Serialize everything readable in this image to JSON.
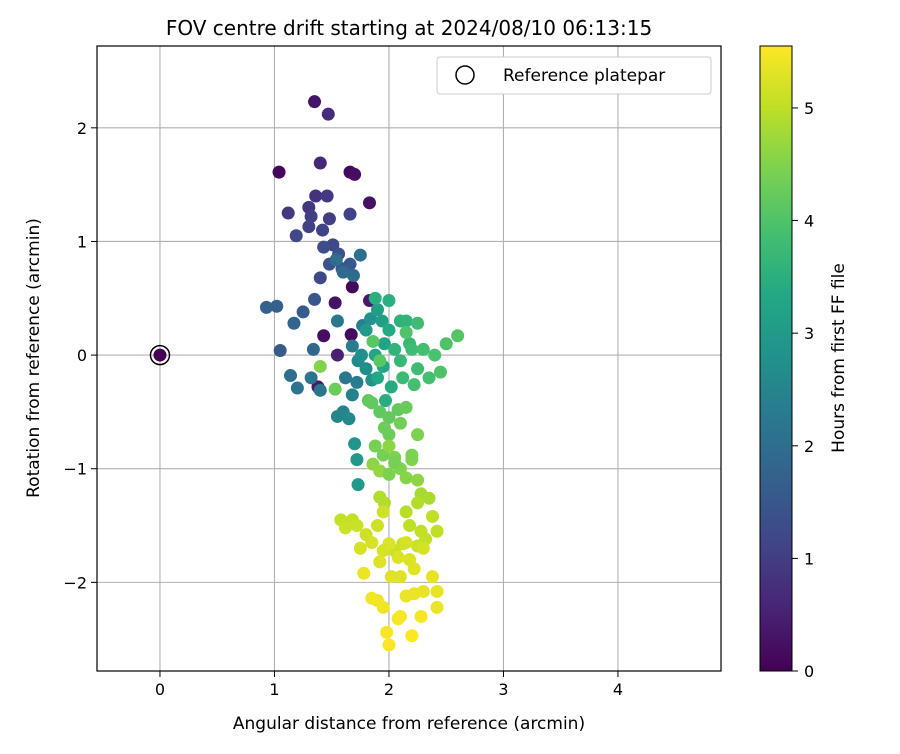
{
  "chart_data": {
    "type": "scatter",
    "title": "FOV centre drift starting at 2024/08/10 06:13:15",
    "xlabel": "Angular distance from reference (arcmin)",
    "ylabel": "Rotation from reference (arcmin)",
    "xlim": [
      -0.55,
      4.9
    ],
    "ylim": [
      -2.78,
      2.72
    ],
    "xticks": [
      0,
      1,
      2,
      3,
      4
    ],
    "yticks": [
      -2,
      -1,
      0,
      1,
      2
    ],
    "xtick_labels": [
      "0",
      "1",
      "2",
      "3",
      "4"
    ],
    "ytick_labels": [
      "−2",
      "−1",
      "0",
      "1",
      "2"
    ],
    "grid": true,
    "legend": {
      "position": "upper-right",
      "entries": [
        "Reference platepar"
      ]
    },
    "colorbar": {
      "label": "Hours from first FF file",
      "range": [
        0,
        5.55
      ],
      "ticks": [
        0,
        1,
        2,
        3,
        4,
        5
      ],
      "tick_labels": [
        "0",
        "1",
        "2",
        "3",
        "4",
        "5"
      ],
      "colormap": "viridis"
    },
    "reference_point": {
      "x": 0,
      "y": 0
    },
    "series": [
      {
        "points": [
          {
            "x": 0.0,
            "y": 0.0,
            "c": 0.0
          },
          {
            "x": 1.04,
            "y": 1.61,
            "c": 0.1
          },
          {
            "x": 1.66,
            "y": 1.61,
            "c": 0.15
          },
          {
            "x": 1.7,
            "y": 1.59,
            "c": 0.2
          },
          {
            "x": 1.35,
            "y": 2.23,
            "c": 0.3
          },
          {
            "x": 1.83,
            "y": 1.34,
            "c": 0.25
          },
          {
            "x": 1.68,
            "y": 0.6,
            "c": 0.1
          },
          {
            "x": 1.67,
            "y": 0.18,
            "c": 0.15
          },
          {
            "x": 1.43,
            "y": 0.17,
            "c": 0.2
          },
          {
            "x": 1.53,
            "y": 0.46,
            "c": 0.3
          },
          {
            "x": 1.83,
            "y": 0.48,
            "c": 0.35
          },
          {
            "x": 1.38,
            "y": -0.28,
            "c": 0.4
          },
          {
            "x": 1.55,
            "y": 0.0,
            "c": 0.5
          },
          {
            "x": 1.4,
            "y": 1.69,
            "c": 0.6
          },
          {
            "x": 1.47,
            "y": 2.12,
            "c": 0.7
          },
          {
            "x": 1.36,
            "y": 1.4,
            "c": 0.8
          },
          {
            "x": 1.3,
            "y": 1.3,
            "c": 0.85
          },
          {
            "x": 1.46,
            "y": 1.4,
            "c": 0.9
          },
          {
            "x": 1.12,
            "y": 1.25,
            "c": 0.9
          },
          {
            "x": 1.32,
            "y": 1.22,
            "c": 1.0
          },
          {
            "x": 1.48,
            "y": 1.2,
            "c": 1.0
          },
          {
            "x": 1.3,
            "y": 1.13,
            "c": 1.05
          },
          {
            "x": 1.66,
            "y": 1.24,
            "c": 1.1
          },
          {
            "x": 1.42,
            "y": 1.1,
            "c": 1.1
          },
          {
            "x": 1.19,
            "y": 1.05,
            "c": 1.2
          },
          {
            "x": 1.51,
            "y": 0.97,
            "c": 1.2
          },
          {
            "x": 1.43,
            "y": 0.95,
            "c": 1.3
          },
          {
            "x": 1.4,
            "y": 0.68,
            "c": 1.2
          },
          {
            "x": 1.56,
            "y": 0.89,
            "c": 1.35
          },
          {
            "x": 1.48,
            "y": 0.8,
            "c": 1.4
          },
          {
            "x": 1.59,
            "y": 0.76,
            "c": 1.45
          },
          {
            "x": 1.66,
            "y": 0.8,
            "c": 1.5
          },
          {
            "x": 1.35,
            "y": 0.49,
            "c": 1.5
          },
          {
            "x": 1.25,
            "y": 0.38,
            "c": 1.6
          },
          {
            "x": 1.05,
            "y": 0.04,
            "c": 1.6
          },
          {
            "x": 0.93,
            "y": 0.42,
            "c": 1.7
          },
          {
            "x": 1.02,
            "y": 0.43,
            "c": 1.7
          },
          {
            "x": 1.17,
            "y": 0.28,
            "c": 1.8
          },
          {
            "x": 1.34,
            "y": 0.05,
            "c": 1.85
          },
          {
            "x": 1.6,
            "y": 0.73,
            "c": 1.9
          },
          {
            "x": 1.69,
            "y": 0.7,
            "c": 1.9
          },
          {
            "x": 1.54,
            "y": 0.84,
            "c": 2.0
          },
          {
            "x": 1.75,
            "y": 0.88,
            "c": 2.0
          },
          {
            "x": 1.14,
            "y": -0.18,
            "c": 2.0
          },
          {
            "x": 1.2,
            "y": -0.29,
            "c": 2.1
          },
          {
            "x": 1.32,
            "y": -0.2,
            "c": 2.1
          },
          {
            "x": 1.4,
            "y": -0.31,
            "c": 2.15
          },
          {
            "x": 1.55,
            "y": 0.3,
            "c": 2.2
          },
          {
            "x": 1.62,
            "y": -0.2,
            "c": 2.2
          },
          {
            "x": 1.68,
            "y": 0.08,
            "c": 2.3
          },
          {
            "x": 1.72,
            "y": -0.24,
            "c": 2.3
          },
          {
            "x": 1.77,
            "y": 0.26,
            "c": 2.4
          },
          {
            "x": 1.68,
            "y": -0.35,
            "c": 2.4
          },
          {
            "x": 1.6,
            "y": -0.5,
            "c": 2.45
          },
          {
            "x": 1.55,
            "y": -0.54,
            "c": 2.5
          },
          {
            "x": 1.65,
            "y": -0.56,
            "c": 2.6
          },
          {
            "x": 1.73,
            "y": -0.05,
            "c": 2.6
          },
          {
            "x": 1.8,
            "y": -0.12,
            "c": 2.7
          },
          {
            "x": 1.76,
            "y": 0.0,
            "c": 2.75
          },
          {
            "x": 1.85,
            "y": -0.22,
            "c": 2.8
          },
          {
            "x": 1.84,
            "y": 0.32,
            "c": 2.8
          },
          {
            "x": 1.7,
            "y": -0.78,
            "c": 2.9
          },
          {
            "x": 1.72,
            "y": -0.92,
            "c": 2.95
          },
          {
            "x": 1.73,
            "y": -1.14,
            "c": 3.0
          },
          {
            "x": 1.8,
            "y": 0.22,
            "c": 3.0
          },
          {
            "x": 1.9,
            "y": 0.4,
            "c": 3.1
          },
          {
            "x": 1.94,
            "y": 0.3,
            "c": 3.1
          },
          {
            "x": 1.96,
            "y": 0.1,
            "c": 3.2
          },
          {
            "x": 1.88,
            "y": 0.0,
            "c": 3.25
          },
          {
            "x": 1.95,
            "y": -0.1,
            "c": 3.3
          },
          {
            "x": 1.9,
            "y": -0.2,
            "c": 3.3
          },
          {
            "x": 2.0,
            "y": 0.22,
            "c": 3.35
          },
          {
            "x": 2.02,
            "y": -0.28,
            "c": 3.4
          },
          {
            "x": 1.97,
            "y": -0.4,
            "c": 3.45
          },
          {
            "x": 1.88,
            "y": 0.5,
            "c": 3.5
          },
          {
            "x": 2.0,
            "y": 0.48,
            "c": 3.5
          },
          {
            "x": 2.1,
            "y": 0.3,
            "c": 3.55
          },
          {
            "x": 2.15,
            "y": 0.3,
            "c": 3.6
          },
          {
            "x": 2.05,
            "y": 0.05,
            "c": 3.6
          },
          {
            "x": 2.1,
            "y": -0.05,
            "c": 3.7
          },
          {
            "x": 2.18,
            "y": 0.1,
            "c": 3.7
          },
          {
            "x": 2.12,
            "y": -0.2,
            "c": 3.75
          },
          {
            "x": 2.2,
            "y": 0.05,
            "c": 3.8
          },
          {
            "x": 2.25,
            "y": -0.12,
            "c": 3.8
          },
          {
            "x": 2.3,
            "y": 0.05,
            "c": 3.85
          },
          {
            "x": 2.22,
            "y": -0.26,
            "c": 3.9
          },
          {
            "x": 2.35,
            "y": -0.2,
            "c": 3.9
          },
          {
            "x": 2.4,
            "y": 0.0,
            "c": 3.95
          },
          {
            "x": 2.45,
            "y": -0.15,
            "c": 4.0
          },
          {
            "x": 2.5,
            "y": 0.1,
            "c": 4.0
          },
          {
            "x": 2.6,
            "y": 0.17,
            "c": 4.05
          },
          {
            "x": 2.15,
            "y": 0.2,
            "c": 4.0
          },
          {
            "x": 1.86,
            "y": 0.12,
            "c": 4.1
          },
          {
            "x": 1.92,
            "y": -0.05,
            "c": 4.1
          },
          {
            "x": 1.85,
            "y": -0.42,
            "c": 4.15
          },
          {
            "x": 1.92,
            "y": -0.5,
            "c": 4.15
          },
          {
            "x": 2.0,
            "y": -0.55,
            "c": 4.2
          },
          {
            "x": 2.08,
            "y": -0.48,
            "c": 4.2
          },
          {
            "x": 2.15,
            "y": -0.46,
            "c": 4.25
          },
          {
            "x": 1.96,
            "y": -0.64,
            "c": 4.3
          },
          {
            "x": 2.0,
            "y": -0.7,
            "c": 4.3
          },
          {
            "x": 2.1,
            "y": -0.6,
            "c": 4.35
          },
          {
            "x": 1.88,
            "y": -0.8,
            "c": 4.4
          },
          {
            "x": 1.95,
            "y": -0.88,
            "c": 4.4
          },
          {
            "x": 2.05,
            "y": -0.9,
            "c": 4.45
          },
          {
            "x": 2.1,
            "y": -1.0,
            "c": 4.5
          },
          {
            "x": 2.25,
            "y": -0.7,
            "c": 4.45
          },
          {
            "x": 2.2,
            "y": -0.92,
            "c": 4.5
          },
          {
            "x": 2.15,
            "y": -1.08,
            "c": 4.55
          },
          {
            "x": 2.25,
            "y": -1.1,
            "c": 4.6
          },
          {
            "x": 1.86,
            "y": -0.96,
            "c": 4.6
          },
          {
            "x": 1.92,
            "y": -1.02,
            "c": 4.65
          },
          {
            "x": 1.4,
            "y": -0.1,
            "c": 4.5
          },
          {
            "x": 1.53,
            "y": -0.3,
            "c": 4.3
          },
          {
            "x": 2.0,
            "y": -0.8,
            "c": 4.6
          },
          {
            "x": 2.28,
            "y": -1.22,
            "c": 4.8
          },
          {
            "x": 2.35,
            "y": -1.26,
            "c": 4.85
          },
          {
            "x": 2.25,
            "y": -1.3,
            "c": 4.9
          },
          {
            "x": 1.92,
            "y": -1.25,
            "c": 4.9
          },
          {
            "x": 1.96,
            "y": -1.3,
            "c": 4.9
          },
          {
            "x": 2.15,
            "y": -1.38,
            "c": 4.95
          },
          {
            "x": 2.38,
            "y": -1.42,
            "c": 5.0
          },
          {
            "x": 2.42,
            "y": -1.55,
            "c": 5.0
          },
          {
            "x": 2.18,
            "y": -1.5,
            "c": 5.0
          },
          {
            "x": 2.28,
            "y": -1.55,
            "c": 5.05
          },
          {
            "x": 2.32,
            "y": -1.62,
            "c": 5.05
          },
          {
            "x": 2.12,
            "y": -1.66,
            "c": 5.1
          },
          {
            "x": 2.05,
            "y": -1.72,
            "c": 5.1
          },
          {
            "x": 2.25,
            "y": -1.68,
            "c": 5.1
          },
          {
            "x": 1.58,
            "y": -1.45,
            "c": 5.05
          },
          {
            "x": 1.68,
            "y": -1.45,
            "c": 5.05
          },
          {
            "x": 1.62,
            "y": -1.52,
            "c": 5.1
          },
          {
            "x": 1.72,
            "y": -1.5,
            "c": 5.1
          },
          {
            "x": 1.8,
            "y": -1.58,
            "c": 5.15
          },
          {
            "x": 1.9,
            "y": -1.5,
            "c": 5.15
          },
          {
            "x": 1.95,
            "y": -1.38,
            "c": 5.15
          },
          {
            "x": 1.75,
            "y": -1.7,
            "c": 5.2
          },
          {
            "x": 1.85,
            "y": -1.65,
            "c": 5.2
          },
          {
            "x": 1.95,
            "y": -1.72,
            "c": 5.2
          },
          {
            "x": 2.0,
            "y": -1.66,
            "c": 5.25
          },
          {
            "x": 2.08,
            "y": -1.78,
            "c": 5.25
          },
          {
            "x": 2.18,
            "y": -1.8,
            "c": 5.25
          },
          {
            "x": 2.22,
            "y": -1.88,
            "c": 5.3
          },
          {
            "x": 2.1,
            "y": -1.95,
            "c": 5.3
          },
          {
            "x": 2.02,
            "y": -1.95,
            "c": 5.3
          },
          {
            "x": 2.38,
            "y": -1.95,
            "c": 5.35
          },
          {
            "x": 2.42,
            "y": -2.08,
            "c": 5.35
          },
          {
            "x": 2.3,
            "y": -2.08,
            "c": 5.35
          },
          {
            "x": 2.15,
            "y": -2.12,
            "c": 5.4
          },
          {
            "x": 2.22,
            "y": -2.1,
            "c": 5.4
          },
          {
            "x": 2.42,
            "y": -2.22,
            "c": 5.4
          },
          {
            "x": 1.78,
            "y": -1.92,
            "c": 5.4
          },
          {
            "x": 1.85,
            "y": -2.14,
            "c": 5.45
          },
          {
            "x": 1.9,
            "y": -2.16,
            "c": 5.45
          },
          {
            "x": 1.95,
            "y": -2.22,
            "c": 5.45
          },
          {
            "x": 2.28,
            "y": -2.3,
            "c": 5.5
          },
          {
            "x": 2.08,
            "y": -2.32,
            "c": 5.5
          },
          {
            "x": 2.1,
            "y": -2.3,
            "c": 5.5
          },
          {
            "x": 1.98,
            "y": -2.44,
            "c": 5.5
          },
          {
            "x": 2.2,
            "y": -2.47,
            "c": 5.55
          },
          {
            "x": 2.0,
            "y": -2.55,
            "c": 5.55
          },
          {
            "x": 1.92,
            "y": -1.82,
            "c": 5.3
          },
          {
            "x": 2.15,
            "y": -1.65,
            "c": 5.2
          },
          {
            "x": 2.3,
            "y": -1.7,
            "c": 5.2
          },
          {
            "x": 1.82,
            "y": -0.4,
            "c": 4.2
          },
          {
            "x": 2.25,
            "y": 0.28,
            "c": 3.8
          },
          {
            "x": 2.05,
            "y": -0.95,
            "c": 4.4
          },
          {
            "x": 2.0,
            "y": -1.05,
            "c": 4.45
          },
          {
            "x": 2.2,
            "y": -0.88,
            "c": 4.45
          }
        ]
      }
    ]
  }
}
